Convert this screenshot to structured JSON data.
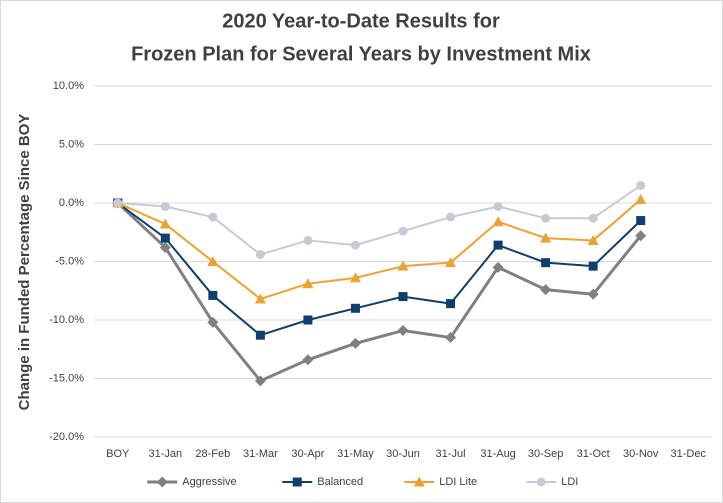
{
  "chart_data": {
    "type": "line",
    "title": [
      "2020 Year-to-Date Results for",
      "Frozen Plan for Several Years by Investment Mix"
    ],
    "y_label": "Change in Funded Percentage Since BOY",
    "categories": [
      "BOY",
      "31-Jan",
      "28-Feb",
      "31-Mar",
      "30-Apr",
      "31-May",
      "30-Jun",
      "31-Jul",
      "31-Aug",
      "30-Sep",
      "31-Oct",
      "30-Nov",
      "31-Dec"
    ],
    "series": [
      {
        "name": "Aggressive",
        "color": "#808080",
        "marker": "diamond",
        "values": [
          0,
          -3.8,
          -10.2,
          -15.2,
          -13.4,
          -12.0,
          -10.9,
          -11.5,
          -5.5,
          -7.4,
          -7.8,
          -2.8,
          null
        ]
      },
      {
        "name": "Balanced",
        "color": "#0e3f6e",
        "marker": "square",
        "values": [
          0,
          -3.0,
          -7.9,
          -11.3,
          -10.0,
          -9.0,
          -8.0,
          -8.6,
          -3.6,
          -5.1,
          -5.4,
          -1.5,
          null
        ]
      },
      {
        "name": "LDI Lite",
        "color": "#f0a030",
        "marker": "triangle",
        "values": [
          0,
          -1.8,
          -5.0,
          -8.2,
          -6.9,
          -6.4,
          -5.4,
          -5.1,
          -1.6,
          -3.0,
          -3.2,
          0.3,
          null
        ]
      },
      {
        "name": "LDI",
        "color": "#c5cad6",
        "marker": "circle",
        "values": [
          0,
          -0.3,
          -1.2,
          -4.4,
          -3.2,
          -3.6,
          -2.4,
          -1.2,
          -0.3,
          -1.3,
          -1.3,
          1.5,
          null
        ]
      }
    ],
    "ylim": [
      -20,
      10
    ],
    "yticks": [
      {
        "value": -20,
        "label": "-20.0%"
      },
      {
        "value": -15,
        "label": "-15.0%"
      },
      {
        "value": -10,
        "label": "-10.0%"
      },
      {
        "value": -5,
        "label": "-5.0%"
      },
      {
        "value": 0,
        "label": "0.0%"
      },
      {
        "value": 5,
        "label": "5.0%"
      },
      {
        "value": 10,
        "label": "10.0%"
      }
    ],
    "grid": true,
    "legend": "bottom"
  }
}
